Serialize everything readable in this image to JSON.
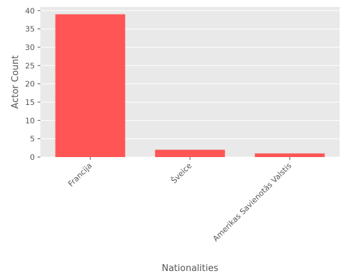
{
  "chart_data": {
    "type": "bar",
    "title": "",
    "xlabel": "Nationalities",
    "ylabel": "Actor Count",
    "categories": [
      "Francija",
      "Šveice",
      "Amerikas Savienotās Valstis"
    ],
    "values": [
      39,
      2,
      1
    ],
    "ylim": [
      0,
      41
    ],
    "yticks": [
      0,
      5,
      10,
      15,
      20,
      25,
      30,
      35,
      40
    ],
    "grid": true,
    "legend": "none",
    "colors": {
      "bar": "#ff5555",
      "plot_background": "#e9e9e9",
      "grid": "#ffffff",
      "text": "#555555"
    }
  }
}
